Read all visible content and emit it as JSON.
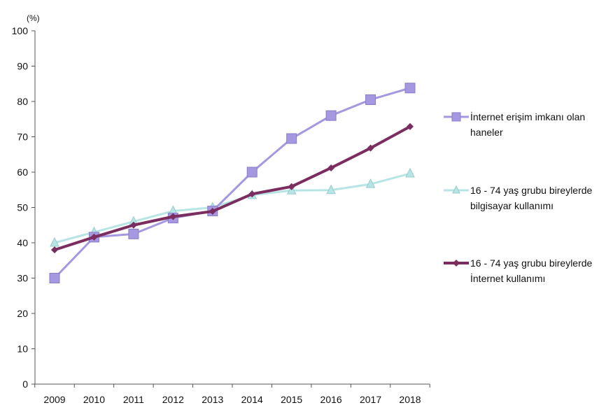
{
  "chart_data": {
    "type": "line",
    "unit_label": "(%)",
    "categories": [
      "2009",
      "2010",
      "2011",
      "2012",
      "2013",
      "2014",
      "2015",
      "2016",
      "2017",
      "2018"
    ],
    "ylim": [
      0,
      100
    ],
    "yticks": [
      0,
      10,
      20,
      30,
      40,
      50,
      60,
      70,
      80,
      90,
      100
    ],
    "grid": false,
    "legend_position": "right",
    "series": [
      {
        "name": "İnternet erişim imkanı olan haneler",
        "legend_lines": [
          "İnternet erişim imkanı olan",
          "haneler"
        ],
        "marker": "square",
        "color": "#a597e0",
        "marker_color": "#a597e0",
        "values": [
          30,
          41.6,
          42.5,
          47,
          49,
          60,
          69.5,
          76,
          80.5,
          83.8
        ]
      },
      {
        "name": "16 - 74 yaş grubu bireylerde bilgisayar kullanımı",
        "legend_lines": [
          "16 - 74 yaş grubu bireylerde",
          "bilgisayar kullanımı"
        ],
        "marker": "triangle",
        "color": "#b7e4e4",
        "marker_color": "#b7e4e4",
        "values": [
          40,
          43,
          46,
          49,
          50,
          53.5,
          54.8,
          54.9,
          56.6,
          59.6
        ]
      },
      {
        "name": "16 - 74 yaş grubu bireylerde İnternet kullanımı",
        "legend_lines": [
          "16 - 74 yaş grubu bireylerde",
          "İnternet kullanımı"
        ],
        "marker": "diamond",
        "color": "#7a2d5e",
        "marker_color": "#7a2d5e",
        "values": [
          38,
          41.6,
          45,
          47.4,
          48.9,
          53.8,
          55.9,
          61.2,
          66.8,
          72.9
        ]
      }
    ]
  }
}
